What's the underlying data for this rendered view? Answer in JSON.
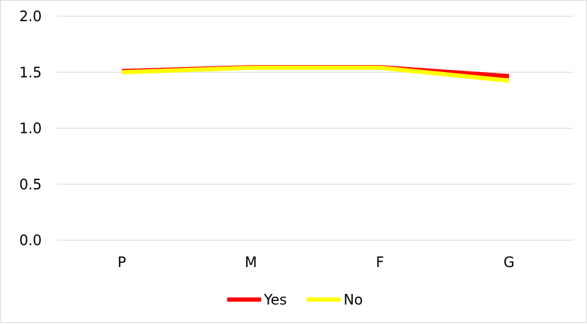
{
  "chart_data": {
    "type": "line",
    "categories": [
      "P",
      "M",
      "F",
      "G"
    ],
    "series": [
      {
        "name": "Yes",
        "color": "#ff0000",
        "values": [
          1.51,
          1.545,
          1.545,
          1.465
        ]
      },
      {
        "name": "No",
        "color": "#ffff00",
        "values": [
          1.5,
          1.54,
          1.54,
          1.425
        ]
      }
    ],
    "ylim": [
      0,
      2.0
    ],
    "yticks": [
      "0.0",
      "0.5",
      "1.0",
      "1.5",
      "2.0"
    ],
    "ytick_values": [
      0,
      0.5,
      1.0,
      1.5,
      2.0
    ],
    "grid": true,
    "legend_position": "bottom",
    "title": "",
    "xlabel": "",
    "ylabel": ""
  }
}
